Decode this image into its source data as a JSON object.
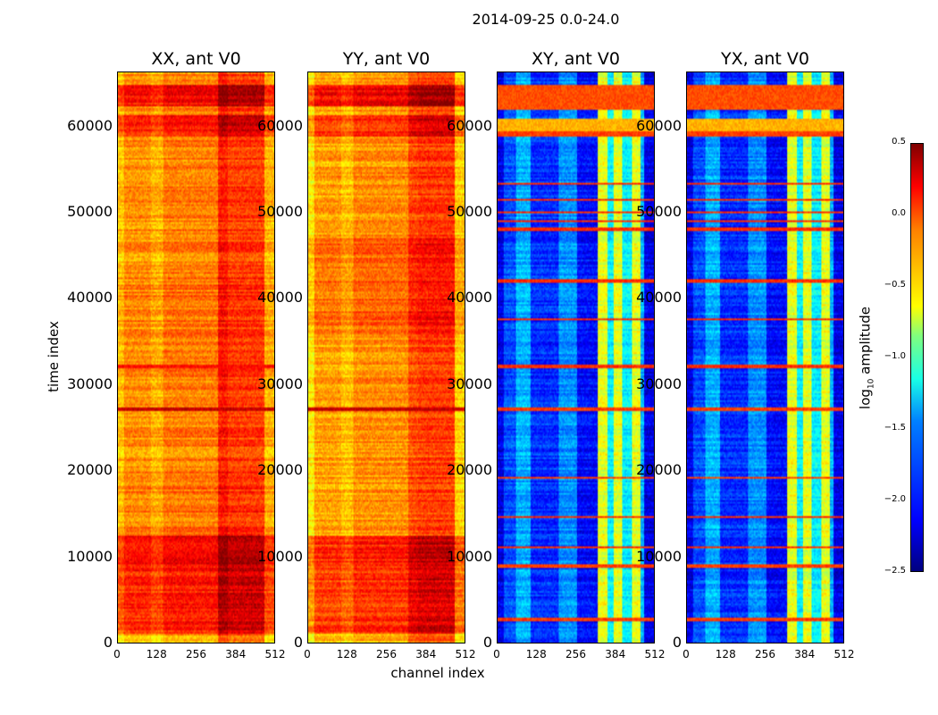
{
  "chart_data": {
    "type": "heatmap",
    "title": "2014-09-25 0.0-24.0",
    "xlabel": "channel index",
    "ylabel": "time index",
    "xlim": [
      0,
      512
    ],
    "ylim": [
      0,
      66400
    ],
    "xticks": [
      "0",
      "128",
      "256",
      "384",
      "512"
    ],
    "yticks": [
      "0",
      "10000",
      "20000",
      "30000",
      "40000",
      "50000",
      "60000"
    ],
    "colorbar": {
      "label": "log10 amplitude",
      "label_main": "log",
      "label_sub": "10",
      "label_rest": " amplitude",
      "vmin": -2.5,
      "vmax": 0.5,
      "colormap": "jet",
      "ticks": [
        "0.5",
        "0.0",
        "−0.5",
        "−1.0",
        "−1.5",
        "−2.0",
        "−2.5"
      ]
    },
    "panels": [
      {
        "title": "XX, ant V0",
        "profile": [
          [
            0,
            20,
            -0.45
          ],
          [
            20,
            110,
            -0.3
          ],
          [
            110,
            150,
            -0.4
          ],
          [
            150,
            330,
            -0.25
          ],
          [
            330,
            360,
            0.05
          ],
          [
            360,
            480,
            -0.05
          ],
          [
            480,
            512,
            -0.4
          ]
        ],
        "bands": [
          [
            0,
            1000,
            -0.1,
            "add"
          ],
          [
            1000,
            9000,
            0.3,
            "add"
          ],
          [
            9000,
            12500,
            0.35,
            "add"
          ],
          [
            12500,
            19000,
            0.05,
            "add"
          ],
          [
            27000,
            27400,
            0.3,
            "set"
          ],
          [
            32000,
            32300,
            0.1,
            "set"
          ],
          [
            37000,
            42500,
            0.05,
            "add"
          ],
          [
            59000,
            61500,
            0.3,
            "add"
          ],
          [
            61500,
            62500,
            0.0,
            "add"
          ],
          [
            62500,
            65000,
            0.4,
            "add"
          ],
          [
            65000,
            66400,
            0.0,
            "add"
          ]
        ]
      },
      {
        "title": "YY, ant V0",
        "profile": [
          [
            0,
            20,
            -0.6
          ],
          [
            20,
            110,
            -0.35
          ],
          [
            110,
            150,
            -0.45
          ],
          [
            150,
            330,
            -0.3
          ],
          [
            330,
            360,
            -0.1
          ],
          [
            360,
            480,
            -0.05
          ],
          [
            480,
            512,
            -0.5
          ]
        ],
        "bands": [
          [
            0,
            1000,
            -0.1,
            "add"
          ],
          [
            1000,
            9000,
            0.3,
            "add"
          ],
          [
            9000,
            12500,
            0.35,
            "add"
          ],
          [
            27000,
            27400,
            0.3,
            "set"
          ],
          [
            36000,
            47000,
            0.15,
            "add"
          ],
          [
            59000,
            61500,
            0.3,
            "add"
          ],
          [
            62500,
            65000,
            0.45,
            "add"
          ]
        ]
      },
      {
        "title": "XY, ant V0",
        "profile": [
          [
            0,
            20,
            -2.2
          ],
          [
            20,
            60,
            -1.9
          ],
          [
            60,
            110,
            -1.6
          ],
          [
            110,
            200,
            -2.0
          ],
          [
            200,
            260,
            -1.7
          ],
          [
            260,
            330,
            -2.1
          ],
          [
            330,
            360,
            -0.7
          ],
          [
            360,
            380,
            -1.4
          ],
          [
            380,
            410,
            -0.7
          ],
          [
            410,
            440,
            -1.4
          ],
          [
            440,
            470,
            -0.7
          ],
          [
            470,
            480,
            -1.6
          ],
          [
            480,
            512,
            -2.2
          ]
        ],
        "bands": [
          [
            2500,
            2900,
            -0.05,
            "set"
          ],
          [
            8800,
            9100,
            -0.05,
            "set"
          ],
          [
            11000,
            11200,
            0,
            "set"
          ],
          [
            14500,
            14700,
            0,
            "set"
          ],
          [
            19000,
            19400,
            -0.05,
            "set"
          ],
          [
            27000,
            27400,
            -0.05,
            "set"
          ],
          [
            32000,
            32300,
            0,
            "set"
          ],
          [
            37500,
            37800,
            0,
            "set"
          ],
          [
            42000,
            42300,
            0,
            "set"
          ],
          [
            48000,
            48300,
            0,
            "set"
          ],
          [
            49000,
            49200,
            0,
            "set"
          ],
          [
            50000,
            50300,
            0,
            "set"
          ],
          [
            51500,
            51700,
            0,
            "set"
          ],
          [
            53300,
            53500,
            0,
            "set"
          ],
          [
            59000,
            59600,
            -0.05,
            "set"
          ],
          [
            59600,
            61000,
            -0.4,
            "set"
          ],
          [
            62000,
            65000,
            -0.1,
            "set"
          ]
        ]
      },
      {
        "title": "YX, ant V0",
        "profile": [
          [
            0,
            20,
            -2.2
          ],
          [
            20,
            60,
            -1.9
          ],
          [
            60,
            110,
            -1.6
          ],
          [
            110,
            200,
            -2.0
          ],
          [
            200,
            260,
            -1.7
          ],
          [
            260,
            330,
            -2.1
          ],
          [
            330,
            360,
            -0.7
          ],
          [
            360,
            380,
            -1.4
          ],
          [
            380,
            410,
            -0.7
          ],
          [
            410,
            440,
            -1.4
          ],
          [
            440,
            470,
            -0.7
          ],
          [
            470,
            480,
            -1.6
          ],
          [
            480,
            512,
            -2.2
          ]
        ],
        "bands": [
          [
            2500,
            2900,
            -0.05,
            "set"
          ],
          [
            8800,
            9100,
            -0.05,
            "set"
          ],
          [
            11000,
            11200,
            0,
            "set"
          ],
          [
            14500,
            14700,
            0,
            "set"
          ],
          [
            19000,
            19400,
            -0.05,
            "set"
          ],
          [
            27000,
            27400,
            -0.05,
            "set"
          ],
          [
            32000,
            32300,
            0,
            "set"
          ],
          [
            37500,
            37800,
            0,
            "set"
          ],
          [
            42000,
            42300,
            0,
            "set"
          ],
          [
            48000,
            48300,
            0,
            "set"
          ],
          [
            49000,
            49200,
            0,
            "set"
          ],
          [
            50000,
            50300,
            0,
            "set"
          ],
          [
            51500,
            51700,
            0,
            "set"
          ],
          [
            53300,
            53500,
            0,
            "set"
          ],
          [
            59000,
            59600,
            -0.05,
            "set"
          ],
          [
            59600,
            61000,
            -0.4,
            "set"
          ],
          [
            62000,
            65000,
            -0.1,
            "set"
          ]
        ]
      }
    ]
  }
}
